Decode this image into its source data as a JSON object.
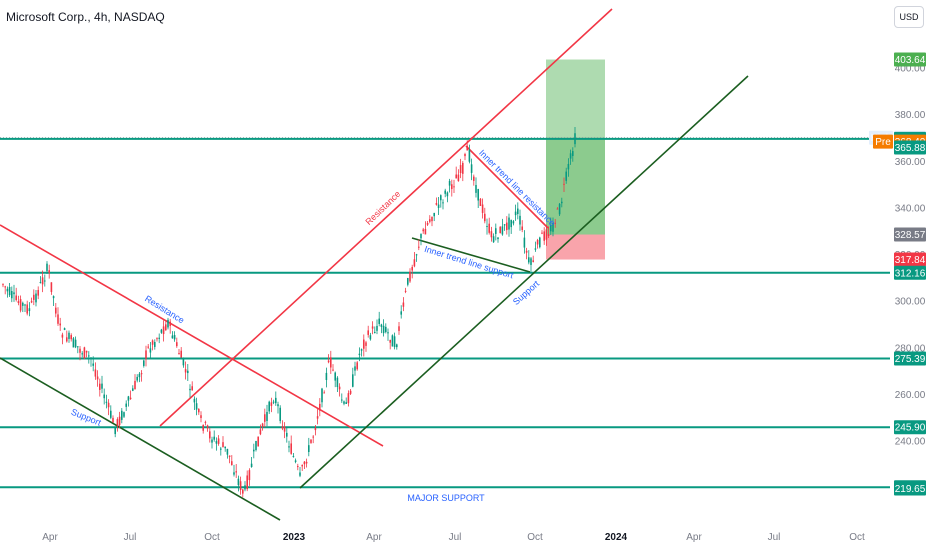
{
  "chart_data": {
    "type": "candlestick",
    "title": "Microsoft Corp., 4h, NASDAQ",
    "currency": "USD",
    "x_ticks": [
      "Apr",
      "Jul",
      "Oct",
      "2023",
      "Apr",
      "Jul",
      "Oct",
      "2024",
      "Apr",
      "Jul",
      "Oct"
    ],
    "y_ticks": [
      240,
      260,
      280,
      300,
      320,
      340,
      360,
      380,
      400
    ],
    "ylim": [
      208,
      430
    ],
    "levels": [
      {
        "value": 369.59,
        "label": "369.59"
      },
      {
        "value": 312.16,
        "label": "312.16"
      },
      {
        "value": 275.39,
        "label": "275.39"
      },
      {
        "value": 245.9,
        "label": "245.90"
      },
      {
        "value": 220.14,
        "label": "220.14"
      }
    ],
    "price_badges": [
      {
        "value": 403.64,
        "label": "403.64",
        "color": "#4caf50"
      },
      {
        "value": 370.1,
        "label": "370.10",
        "prefix": "High",
        "color": "#e3effd"
      },
      {
        "value": 369.59,
        "label": "369.59",
        "color": "#089981"
      },
      {
        "value": 368.4,
        "label": "368.40",
        "prefix": "Pre",
        "color": "#f57c00"
      },
      {
        "value": 365.88,
        "label": "365.88",
        "color": "#089981"
      },
      {
        "value": 328.57,
        "label": "328.57",
        "color": "#787b86"
      },
      {
        "value": 317.84,
        "label": "317.84",
        "color": "#f23645"
      },
      {
        "value": 312.16,
        "label": "312.16",
        "color": "#089981"
      },
      {
        "value": 275.39,
        "label": "275.39",
        "color": "#089981"
      },
      {
        "value": 245.9,
        "label": "245.90",
        "color": "#089981"
      },
      {
        "value": 220.14,
        "label": "220.14",
        "color": "#089981"
      },
      {
        "value": 219.65,
        "label": "219.65",
        "color": "#089981"
      }
    ],
    "annotations": [
      {
        "text": "Resistance",
        "color": "#f23645"
      },
      {
        "text": "Resistance",
        "color": "#2962ff"
      },
      {
        "text": "Inner trend line resistance",
        "color": "#2962ff"
      },
      {
        "text": "Inner trend line support",
        "color": "#2962ff"
      },
      {
        "text": "Support",
        "color": "#2962ff"
      },
      {
        "text": "Support",
        "color": "#2962ff"
      },
      {
        "text": "MAJOR SUPPORT",
        "color": "#2962ff"
      }
    ],
    "position_box": {
      "entry": 328.57,
      "target": 403.64,
      "stop": 317.84
    },
    "colors": {
      "up": "#089981",
      "down": "#f23645",
      "level": "#089981",
      "channel_up": "#f23645",
      "channel_support": "#1b5e20"
    }
  }
}
